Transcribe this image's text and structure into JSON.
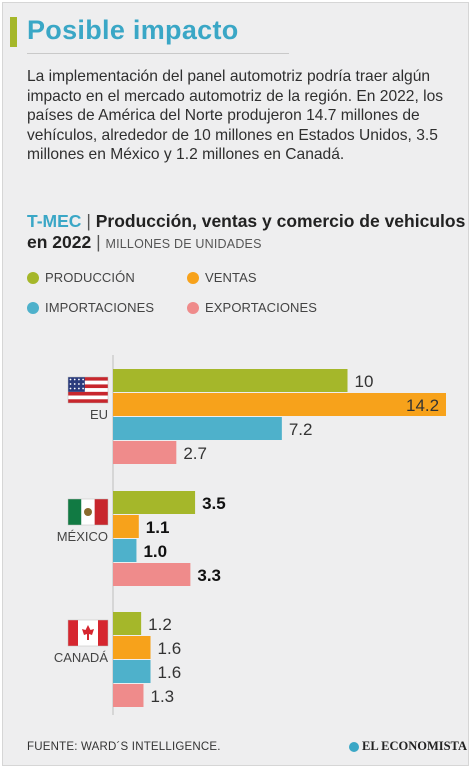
{
  "header": {
    "title": "Posible impacto"
  },
  "intro": "La implementación del panel automotriz podría traer algún impacto en el mercado automotriz de la región. En 2022, los países de América del Norte produjeron 14.7 millones de vehículos, alrededor de 10 millones en Estados Unidos, 3.5 millones en México y 1.2 millones en Canadá.",
  "subtitle": {
    "tag": "T-MEC",
    "sep": " | ",
    "main": "Producción, ventas y comercio de vehiculos  en 2022",
    "sep2": " | ",
    "unit": "MILLONES DE UNIDADES"
  },
  "legend": [
    {
      "label": "PRODUCCIÓN",
      "color": "#a5b72a"
    },
    {
      "label": "VENTAS",
      "color": "#f7a21b"
    },
    {
      "label": "IMPORTACIONES",
      "color": "#4eb1cb"
    },
    {
      "label": "EXPORTACIONES",
      "color": "#ef8b8b"
    }
  ],
  "chart_data": {
    "type": "bar",
    "orientation": "horizontal",
    "categories": [
      "EU",
      "MÉXICO",
      "CANADÁ"
    ],
    "series": [
      {
        "name": "PRODUCCIÓN",
        "color": "#a5b72a",
        "values": [
          10,
          3.5,
          1.2
        ]
      },
      {
        "name": "VENTAS",
        "color": "#f7a21b",
        "values": [
          14.2,
          1.1,
          1.6
        ]
      },
      {
        "name": "IMPORTACIONES",
        "color": "#4eb1cb",
        "values": [
          7.2,
          1.0,
          1.6
        ]
      },
      {
        "name": "EXPORTACIONES",
        "color": "#ef8b8b",
        "values": [
          2.7,
          3.3,
          1.3
        ]
      }
    ],
    "value_labels": [
      [
        "10",
        "14.2",
        "7.2",
        "2.7"
      ],
      [
        "3.5",
        "1.1",
        "1.0",
        "3.3"
      ],
      [
        "1.2",
        "1.6",
        "1.6",
        "1.3"
      ]
    ],
    "bold_value_labels": [
      false,
      true,
      false
    ],
    "flags": [
      "us-flag-icon",
      "mexico-flag-icon",
      "canada-flag-icon"
    ],
    "xlim": [
      0,
      14.2
    ],
    "grid": false,
    "legend_position": "top"
  },
  "footer": {
    "source": "FUENTE: WARD´S INTELLIGENCE.",
    "logo": "EL ECONOMISTA"
  }
}
